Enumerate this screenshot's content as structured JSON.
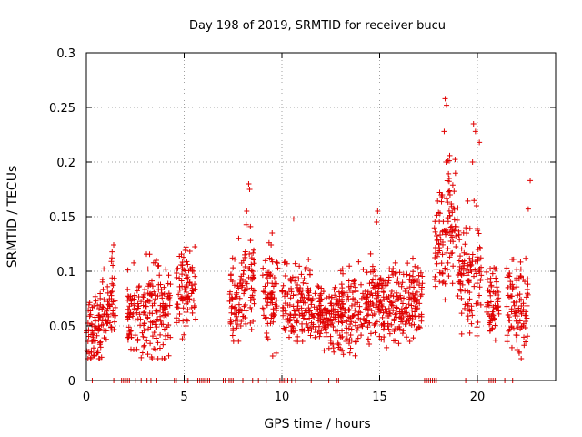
{
  "chart_data": {
    "type": "scatter",
    "title": "Day 198 of 2019, SRMTID for receiver bucu",
    "xlabel": "GPS time / hours",
    "ylabel": "SRMTID / TECUs",
    "xlim": [
      0,
      24
    ],
    "ylim": [
      0,
      0.3
    ],
    "x_ticks": [
      0,
      5,
      10,
      15,
      20
    ],
    "x_tick_labels": [
      "0",
      "5",
      "10",
      "15",
      "20"
    ],
    "y_ticks": [
      0,
      0.05,
      0.1,
      0.15,
      0.2,
      0.25,
      0.3
    ],
    "y_tick_labels": [
      "0",
      "0.05",
      "0.1",
      "0.15",
      "0.2",
      "0.25",
      "0.3"
    ],
    "grid": true,
    "marker": "+",
    "color": "#e00000",
    "segments": [
      {
        "x_start": 0.0,
        "x_end": 0.7,
        "y_mean": 0.045,
        "y_spread": 0.025
      },
      {
        "x_start": 0.7,
        "x_end": 1.1,
        "y_mean": 0.06,
        "y_spread": 0.03
      },
      {
        "x_start": 1.1,
        "x_end": 1.5,
        "y_mean": 0.07,
        "y_spread": 0.03
      },
      {
        "x_start": 2.1,
        "x_end": 3.0,
        "y_mean": 0.06,
        "y_spread": 0.03
      },
      {
        "x_start": 3.0,
        "x_end": 4.3,
        "y_mean": 0.065,
        "y_spread": 0.035
      },
      {
        "x_start": 4.6,
        "x_end": 5.1,
        "y_mean": 0.08,
        "y_spread": 0.03
      },
      {
        "x_start": 5.1,
        "x_end": 5.6,
        "y_mean": 0.085,
        "y_spread": 0.03
      },
      {
        "x_start": 7.3,
        "x_end": 8.1,
        "y_mean": 0.07,
        "y_spread": 0.035
      },
      {
        "x_start": 8.1,
        "x_end": 8.6,
        "y_mean": 0.09,
        "y_spread": 0.04
      },
      {
        "x_start": 9.0,
        "x_end": 9.8,
        "y_mean": 0.075,
        "y_spread": 0.035
      },
      {
        "x_start": 10.0,
        "x_end": 11.5,
        "y_mean": 0.07,
        "y_spread": 0.03
      },
      {
        "x_start": 11.5,
        "x_end": 13.0,
        "y_mean": 0.06,
        "y_spread": 0.025
      },
      {
        "x_start": 13.0,
        "x_end": 14.5,
        "y_mean": 0.065,
        "y_spread": 0.03
      },
      {
        "x_start": 14.5,
        "x_end": 16.0,
        "y_mean": 0.07,
        "y_spread": 0.03
      },
      {
        "x_start": 16.0,
        "x_end": 17.2,
        "y_mean": 0.07,
        "y_spread": 0.03
      },
      {
        "x_start": 17.8,
        "x_end": 18.4,
        "y_mean": 0.12,
        "y_spread": 0.04
      },
      {
        "x_start": 18.4,
        "x_end": 19.0,
        "y_mean": 0.15,
        "y_spread": 0.05
      },
      {
        "x_start": 19.0,
        "x_end": 20.2,
        "y_mean": 0.1,
        "y_spread": 0.045
      },
      {
        "x_start": 20.4,
        "x_end": 21.1,
        "y_mean": 0.07,
        "y_spread": 0.03
      },
      {
        "x_start": 21.5,
        "x_end": 22.6,
        "y_mean": 0.07,
        "y_spread": 0.035
      }
    ],
    "peak_points": [
      {
        "x": 18.35,
        "y": 0.258
      },
      {
        "x": 18.42,
        "y": 0.252
      },
      {
        "x": 18.3,
        "y": 0.228
      },
      {
        "x": 18.4,
        "y": 0.2
      },
      {
        "x": 18.55,
        "y": 0.185
      },
      {
        "x": 19.8,
        "y": 0.235
      },
      {
        "x": 19.9,
        "y": 0.228
      },
      {
        "x": 20.1,
        "y": 0.218
      },
      {
        "x": 19.75,
        "y": 0.2
      },
      {
        "x": 8.3,
        "y": 0.18
      },
      {
        "x": 8.35,
        "y": 0.175
      },
      {
        "x": 8.2,
        "y": 0.155
      },
      {
        "x": 14.9,
        "y": 0.155
      },
      {
        "x": 14.85,
        "y": 0.145
      },
      {
        "x": 22.7,
        "y": 0.183
      },
      {
        "x": 22.6,
        "y": 0.157
      },
      {
        "x": 10.6,
        "y": 0.148
      },
      {
        "x": 9.5,
        "y": 0.135
      },
      {
        "x": 19.95,
        "y": 0.16
      },
      {
        "x": 18.6,
        "y": 0.17
      }
    ],
    "zero_points_x": [
      0.3,
      1.4,
      1.8,
      1.9,
      2.0,
      2.1,
      2.2,
      2.5,
      2.8,
      3.1,
      3.3,
      3.6,
      4.5,
      4.6,
      5.0,
      5.1,
      5.2,
      5.7,
      5.8,
      5.9,
      6.0,
      6.1,
      6.2,
      6.3,
      7.0,
      7.1,
      7.3,
      7.4,
      7.5,
      8.0,
      8.5,
      8.8,
      9.2,
      9.9,
      10.0,
      10.1,
      10.2,
      10.3,
      10.5,
      10.7,
      11.5,
      12.4,
      12.8,
      12.9,
      17.3,
      17.4,
      17.5,
      17.6,
      17.7,
      17.8,
      17.9,
      19.4,
      20.0,
      20.6,
      20.7,
      20.8,
      20.9,
      21.4,
      21.8
    ]
  }
}
